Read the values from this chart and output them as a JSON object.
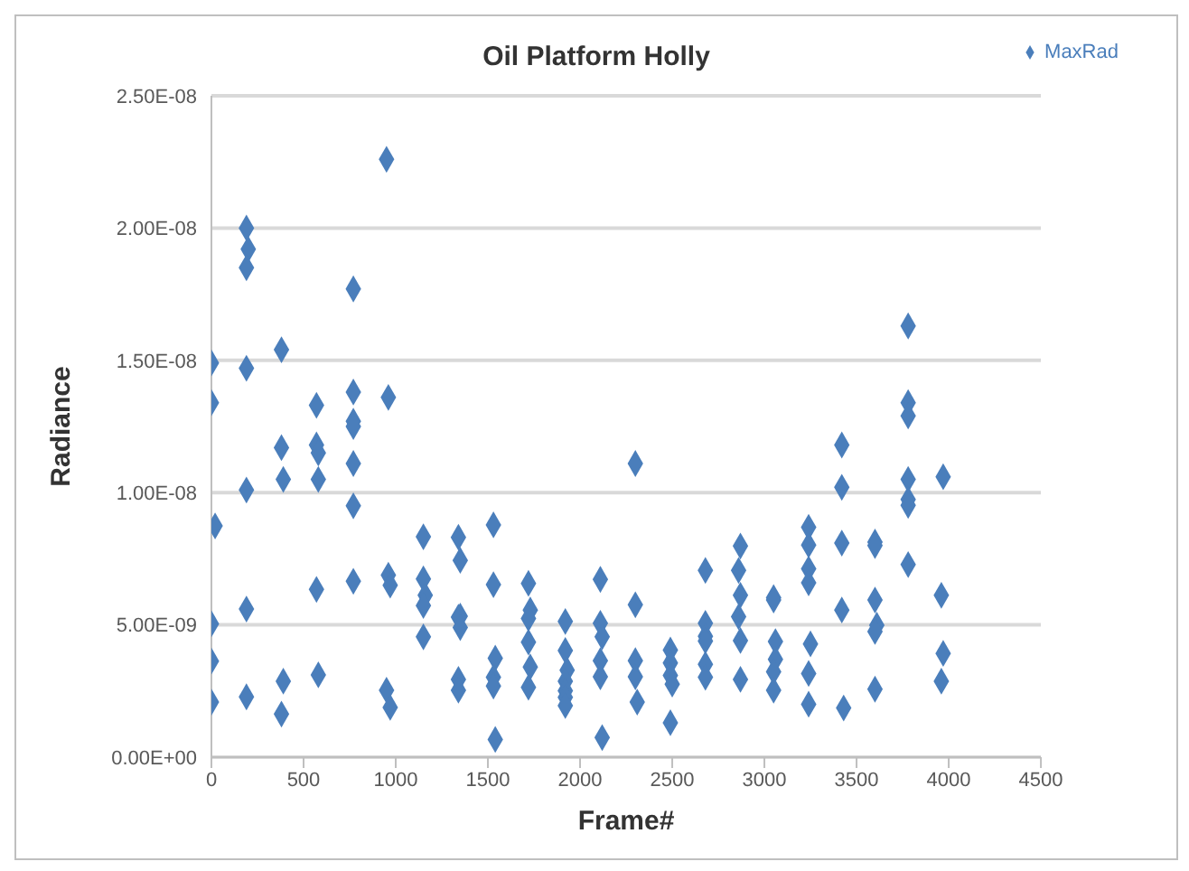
{
  "chart_data": {
    "type": "scatter",
    "title": "Oil Platform Holly",
    "xlabel": "Frame#",
    "ylabel": "Radiance",
    "xlim": [
      0,
      4500
    ],
    "xticks": [
      0,
      500,
      1000,
      1500,
      2000,
      2500,
      3000,
      3500,
      4000,
      4500
    ],
    "ylim": [
      0,
      2.5e-08
    ],
    "yticks": [
      {
        "value": 0,
        "label": "0.00E+00"
      },
      {
        "value": 5e-09,
        "label": "5.00E-09"
      },
      {
        "value": 1e-08,
        "label": "1.00E-08"
      },
      {
        "value": 1.5e-08,
        "label": "1.50E-08"
      },
      {
        "value": 2e-08,
        "label": "2.00E-08"
      },
      {
        "value": 2.5e-08,
        "label": "2.50E-08"
      }
    ],
    "grid": "y",
    "legend": "top right",
    "marker": "diamond",
    "series": [
      {
        "name": "MaxRad",
        "color": "#4a7ebb",
        "x": [
          0,
          0,
          20,
          0,
          0,
          0,
          190,
          200,
          190,
          190,
          190,
          190,
          190,
          380,
          380,
          390,
          390,
          380,
          570,
          570,
          580,
          580,
          570,
          580,
          770,
          770,
          770,
          770,
          770,
          770,
          770,
          950,
          960,
          960,
          970,
          950,
          970,
          1150,
          1150,
          1160,
          1150,
          1150,
          1340,
          1350,
          1350,
          1340,
          1350,
          1340,
          1340,
          1530,
          1530,
          1540,
          1530,
          1530,
          1540,
          1720,
          1730,
          1720,
          1720,
          1730,
          1720,
          1920,
          1920,
          1930,
          1920,
          1920,
          1920,
          1920,
          2110,
          2110,
          2120,
          2110,
          2110,
          2120,
          2300,
          2300,
          2300,
          2300,
          2310,
          2490,
          2490,
          2490,
          2500,
          2490,
          2680,
          2680,
          2680,
          2680,
          2680,
          2680,
          2870,
          2860,
          2870,
          2860,
          2870,
          2870,
          3050,
          3050,
          3060,
          3060,
          3050,
          3050,
          3240,
          3240,
          3240,
          3240,
          3250,
          3240,
          3240,
          3420,
          3420,
          3420,
          3420,
          3430,
          3600,
          3600,
          3600,
          3610,
          3600,
          3600,
          3780,
          3780,
          3780,
          3780,
          3780,
          3780,
          3780,
          3970,
          3960,
          3970,
          3960
        ],
        "values": [
          1.49e-08,
          1.34e-08,
          8.74e-09,
          5.04e-09,
          3.63e-09,
          2.08e-09,
          2e-08,
          1.92e-08,
          1.85e-08,
          1.47e-08,
          1.01e-08,
          5.6e-09,
          2.28e-09,
          1.54e-08,
          1.17e-08,
          1.05e-08,
          2.87e-09,
          1.63e-09,
          1.33e-08,
          1.18e-08,
          1.15e-08,
          1.05e-08,
          6.34e-09,
          3.11e-09,
          1.77e-08,
          1.38e-08,
          1.27e-08,
          1.25e-08,
          1.11e-08,
          9.5e-09,
          6.65e-09,
          2.26e-08,
          1.36e-08,
          6.88e-09,
          6.5e-09,
          2.53e-09,
          1.88e-09,
          8.33e-09,
          6.74e-09,
          6.12e-09,
          5.73e-09,
          4.55e-09,
          8.31e-09,
          7.44e-09,
          5.33e-09,
          5.29e-09,
          4.9e-09,
          2.94e-09,
          2.53e-09,
          8.78e-09,
          6.52e-09,
          3.74e-09,
          3.02e-09,
          2.69e-09,
          6.7e-10,
          6.57e-09,
          5.56e-09,
          5.24e-09,
          4.35e-09,
          3.41e-09,
          2.64e-09,
          5.13e-09,
          4.03e-09,
          3.29e-09,
          2.87e-09,
          2.51e-09,
          2.26e-09,
          1.95e-09,
          6.72e-09,
          5.06e-09,
          4.55e-09,
          3.65e-09,
          3.04e-09,
          7.4e-10,
          1.11e-08,
          5.76e-09,
          3.65e-09,
          3.04e-09,
          2.08e-09,
          4.05e-09,
          3.56e-09,
          3.09e-09,
          2.76e-09,
          1.3e-09,
          7.06e-09,
          5.06e-09,
          4.57e-09,
          4.39e-09,
          3.51e-09,
          3.02e-09,
          7.98e-09,
          7.06e-09,
          6.12e-09,
          5.31e-09,
          4.41e-09,
          2.94e-09,
          6.03e-09,
          5.94e-09,
          4.37e-09,
          3.7e-09,
          3.23e-09,
          2.53e-09,
          8.69e-09,
          8.02e-09,
          7.12e-09,
          6.59e-09,
          4.28e-09,
          3.16e-09,
          2e-09,
          1.18e-08,
          1.02e-08,
          8.09e-09,
          5.56e-09,
          1.86e-09,
          8.13e-09,
          8e-09,
          5.94e-09,
          4.99e-09,
          4.75e-09,
          2.57e-09,
          1.63e-08,
          1.34e-08,
          1.29e-08,
          1.05e-08,
          9.74e-09,
          9.52e-09,
          7.28e-09,
          1.06e-08,
          6.12e-09,
          3.92e-09,
          2.87e-09
        ]
      }
    ]
  }
}
